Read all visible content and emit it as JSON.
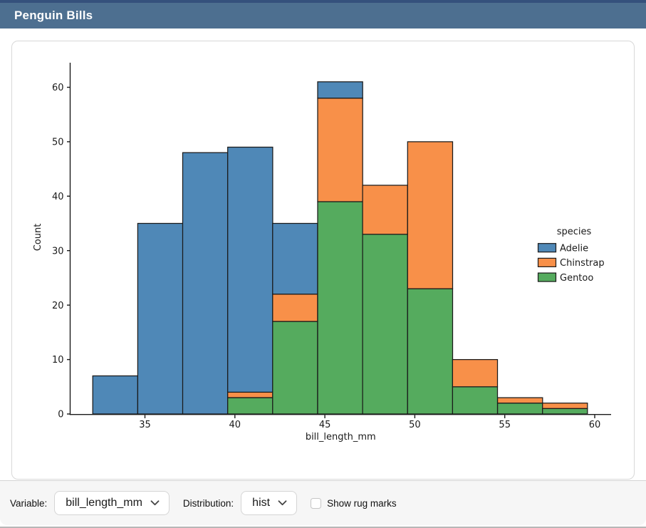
{
  "header": {
    "title": "Penguin Bills"
  },
  "colors": {
    "header_bg": "#4d6f90",
    "header_top_strip": "#35517c",
    "adelie_blue": "#4f88b7",
    "chinstrap_orange": "#f89049",
    "gentoo_green": "#55ab5e"
  },
  "chart_data": {
    "type": "bar",
    "subtype": "stacked-histogram",
    "title": "",
    "xlabel": "bill_length_mm",
    "ylabel": "Count",
    "legend_title": "species",
    "legend_position": "center right",
    "grid": false,
    "background": "#ffffff",
    "edge_color": "#1a1a1a",
    "bin_edges": [
      32.1,
      34.6,
      37.1,
      39.6,
      42.1,
      44.6,
      47.1,
      49.6,
      52.1,
      54.6,
      57.1,
      59.6
    ],
    "series": [
      {
        "name": "Adelie",
        "color": "#4f88b7",
        "values": [
          7,
          35,
          48,
          45,
          13,
          3,
          0,
          0,
          0,
          0,
          0
        ]
      },
      {
        "name": "Chinstrap",
        "color": "#f89049",
        "values": [
          0,
          0,
          0,
          1,
          5,
          19,
          9,
          27,
          5,
          1,
          1
        ]
      },
      {
        "name": "Gentoo",
        "color": "#55ab5e",
        "values": [
          0,
          0,
          0,
          3,
          17,
          39,
          33,
          23,
          5,
          2,
          1
        ]
      }
    ],
    "stack_bottom_to_top": [
      "Gentoo",
      "Chinstrap",
      "Adelie"
    ],
    "bin_totals": [
      7,
      35,
      48,
      49,
      35,
      61,
      42,
      50,
      10,
      3,
      2
    ],
    "x_ticks": [
      35,
      40,
      45,
      50,
      55,
      60
    ],
    "y_ticks": [
      0,
      10,
      20,
      30,
      40,
      50,
      60
    ],
    "xlim": [
      30.85,
      60.9
    ],
    "ylim": [
      0,
      64.5
    ]
  },
  "controls": {
    "variable": {
      "label": "Variable:",
      "value": "bill_length_mm"
    },
    "distribution": {
      "label": "Distribution:",
      "value": "hist"
    },
    "rug": {
      "label": "Show rug marks",
      "checked": false
    }
  }
}
